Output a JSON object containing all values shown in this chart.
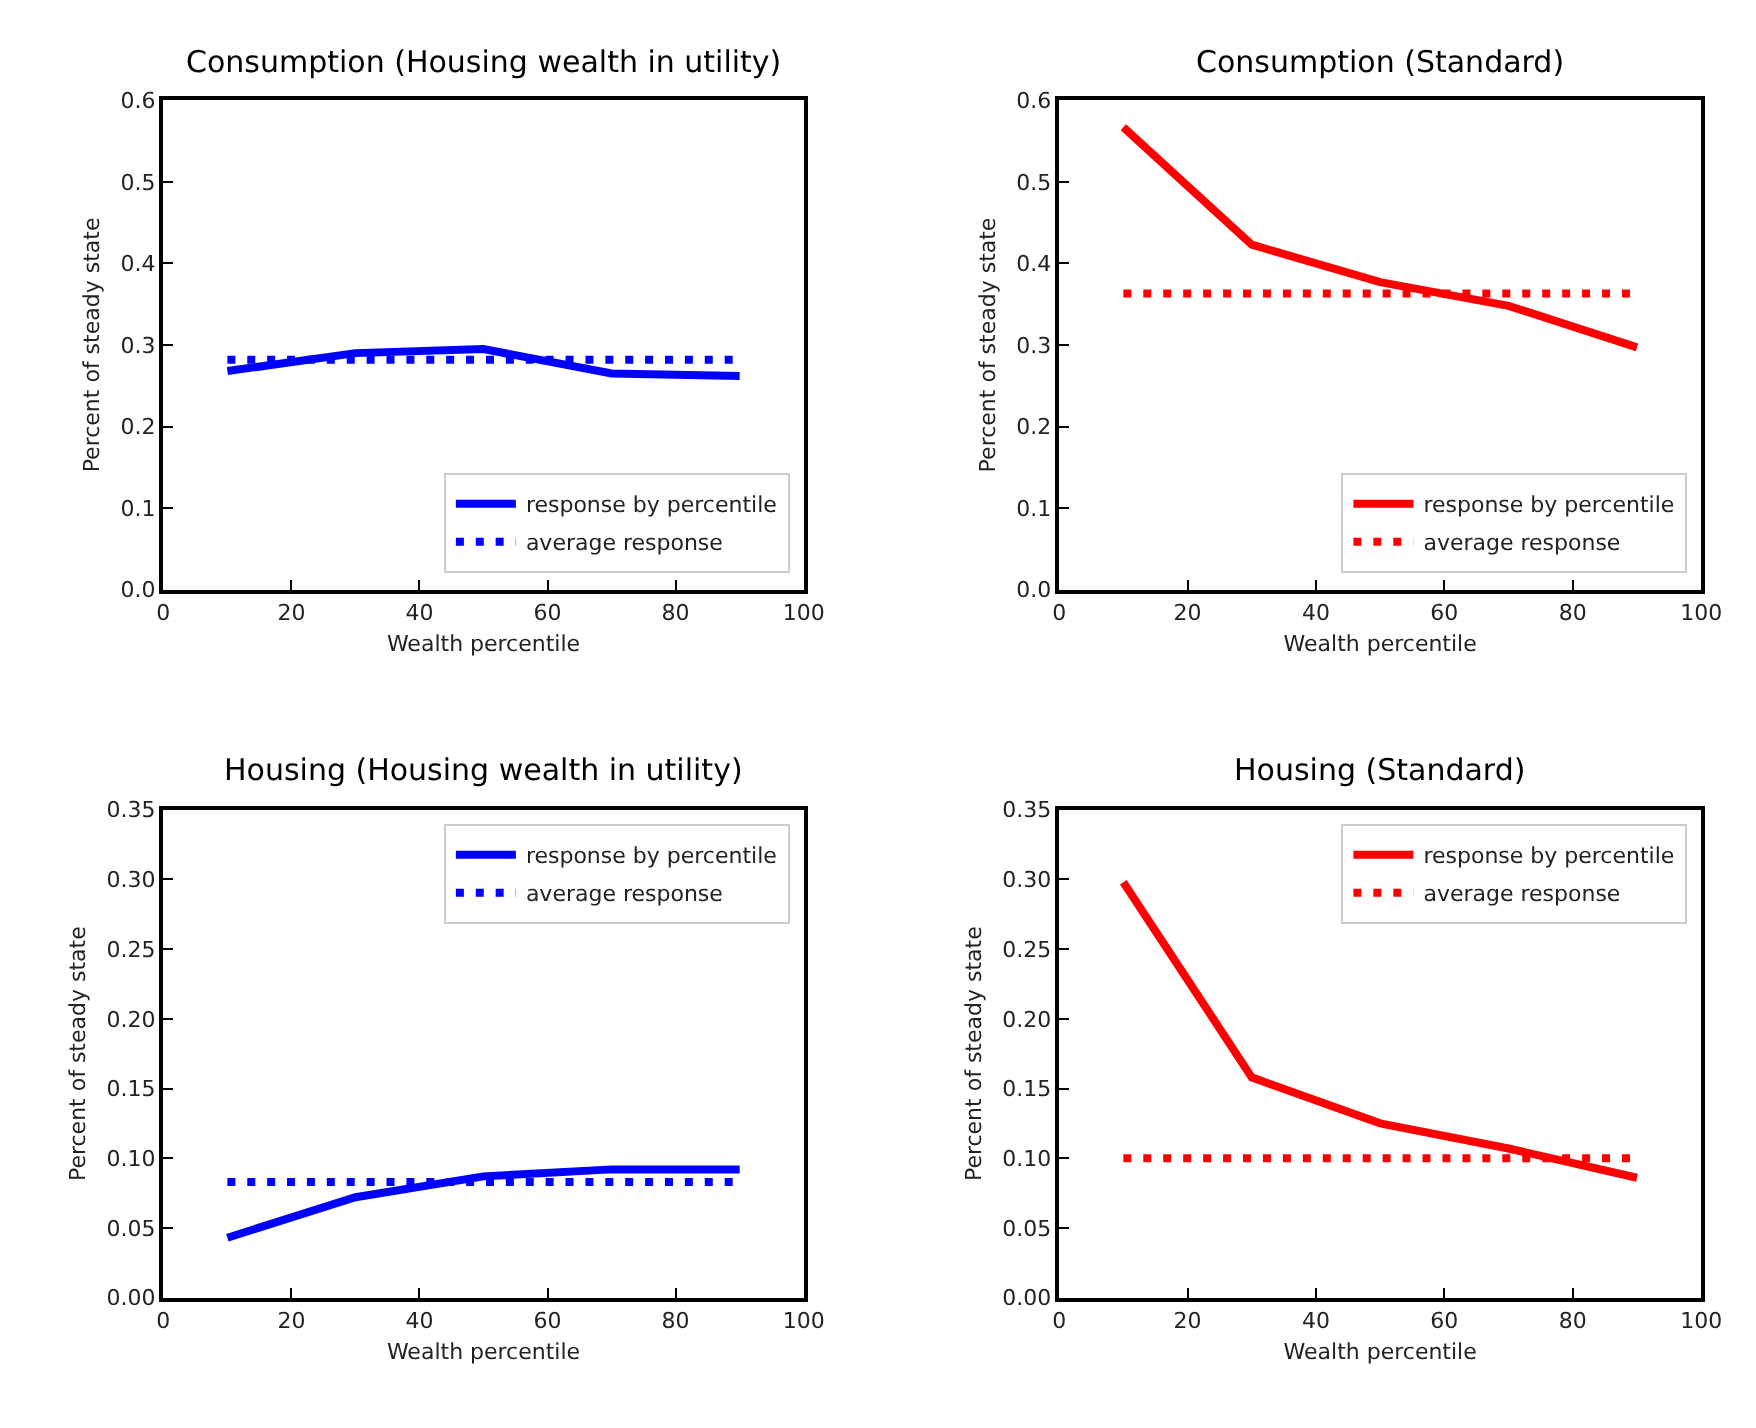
{
  "chart_data": [
    {
      "type": "line",
      "title": "Consumption (Housing wealth in utility)",
      "xlabel": "Wealth percentile",
      "ylabel": "Percent of steady state",
      "xlim": [
        0,
        100
      ],
      "xticks": [
        0,
        20,
        40,
        60,
        80,
        100
      ],
      "ylim": [
        0,
        0.6
      ],
      "yticks": [
        {
          "value": 0,
          "label": "0.0"
        },
        {
          "value": 0.1,
          "label": "0.1"
        },
        {
          "value": 0.2,
          "label": "0.2"
        },
        {
          "value": 0.3,
          "label": "0.3"
        },
        {
          "value": 0.4,
          "label": "0.4"
        },
        {
          "value": 0.5,
          "label": "0.5"
        },
        {
          "value": 0.6,
          "label": "0.6"
        }
      ],
      "legend": "bottom right",
      "marker": "none",
      "series": [
        {
          "name": "response by percentile",
          "color": "#0000ff",
          "x": [
            10,
            30,
            50,
            70,
            90
          ],
          "values": [
            0.268,
            0.29,
            0.295,
            0.265,
            0.262
          ],
          "line_style": "solid"
        },
        {
          "name": "average response",
          "color": "#0000ff",
          "x": [
            10,
            90
          ],
          "values": [
            0.282,
            0.282
          ],
          "line_style": "dotted"
        }
      ]
    },
    {
      "type": "line",
      "title": "Consumption (Standard)",
      "xlabel": "Wealth percentile",
      "ylabel": "Percent of steady state",
      "xlim": [
        0,
        100
      ],
      "xticks": [
        0,
        20,
        40,
        60,
        80,
        100
      ],
      "ylim": [
        0,
        0.6
      ],
      "yticks": [
        {
          "value": 0,
          "label": "0.0"
        },
        {
          "value": 0.1,
          "label": "0.1"
        },
        {
          "value": 0.2,
          "label": "0.2"
        },
        {
          "value": 0.3,
          "label": "0.3"
        },
        {
          "value": 0.4,
          "label": "0.4"
        },
        {
          "value": 0.5,
          "label": "0.5"
        },
        {
          "value": 0.6,
          "label": "0.6"
        }
      ],
      "legend": "bottom right",
      "marker": "none",
      "series": [
        {
          "name": "response by percentile",
          "color": "#ff0000",
          "x": [
            10,
            30,
            50,
            70,
            90
          ],
          "values": [
            0.567,
            0.423,
            0.377,
            0.348,
            0.297
          ],
          "line_style": "solid"
        },
        {
          "name": "average response",
          "color": "#ff0000",
          "x": [
            10,
            90
          ],
          "values": [
            0.363,
            0.363
          ],
          "line_style": "dotted"
        }
      ]
    },
    {
      "type": "line",
      "title": "Housing (Housing wealth in utility)",
      "xlabel": "Wealth percentile",
      "ylabel": "Percent of steady state",
      "xlim": [
        0,
        100
      ],
      "xticks": [
        0,
        20,
        40,
        60,
        80,
        100
      ],
      "ylim": [
        0,
        0.35
      ],
      "yticks": [
        {
          "value": 0,
          "label": "0.00"
        },
        {
          "value": 0.05,
          "label": "0.05"
        },
        {
          "value": 0.1,
          "label": "0.10"
        },
        {
          "value": 0.15,
          "label": "0.15"
        },
        {
          "value": 0.2,
          "label": "0.20"
        },
        {
          "value": 0.25,
          "label": "0.25"
        },
        {
          "value": 0.3,
          "label": "0.30"
        },
        {
          "value": 0.35,
          "label": "0.35"
        }
      ],
      "legend": "top right",
      "marker": "none",
      "series": [
        {
          "name": "response by percentile",
          "color": "#0000ff",
          "x": [
            10,
            30,
            50,
            70,
            90
          ],
          "values": [
            0.043,
            0.072,
            0.087,
            0.092,
            0.092
          ],
          "line_style": "solid"
        },
        {
          "name": "average response",
          "color": "#0000ff",
          "x": [
            10,
            90
          ],
          "values": [
            0.083,
            0.083
          ],
          "line_style": "dotted"
        }
      ]
    },
    {
      "type": "line",
      "title": "Housing (Standard)",
      "xlabel": "Wealth percentile",
      "ylabel": "Percent of steady state",
      "xlim": [
        0,
        100
      ],
      "xticks": [
        0,
        20,
        40,
        60,
        80,
        100
      ],
      "ylim": [
        0,
        0.35
      ],
      "yticks": [
        {
          "value": 0,
          "label": "0.00"
        },
        {
          "value": 0.05,
          "label": "0.05"
        },
        {
          "value": 0.1,
          "label": "0.10"
        },
        {
          "value": 0.15,
          "label": "0.15"
        },
        {
          "value": 0.2,
          "label": "0.20"
        },
        {
          "value": 0.25,
          "label": "0.25"
        },
        {
          "value": 0.3,
          "label": "0.30"
        },
        {
          "value": 0.35,
          "label": "0.35"
        }
      ],
      "legend": "top right",
      "marker": "none",
      "series": [
        {
          "name": "response by percentile",
          "color": "#ff0000",
          "x": [
            10,
            30,
            50,
            70,
            90
          ],
          "values": [
            0.298,
            0.158,
            0.125,
            0.107,
            0.086
          ],
          "line_style": "solid"
        },
        {
          "name": "average response",
          "color": "#ff0000",
          "x": [
            10,
            90
          ],
          "values": [
            0.1,
            0.1
          ],
          "line_style": "dotted"
        }
      ]
    }
  ]
}
